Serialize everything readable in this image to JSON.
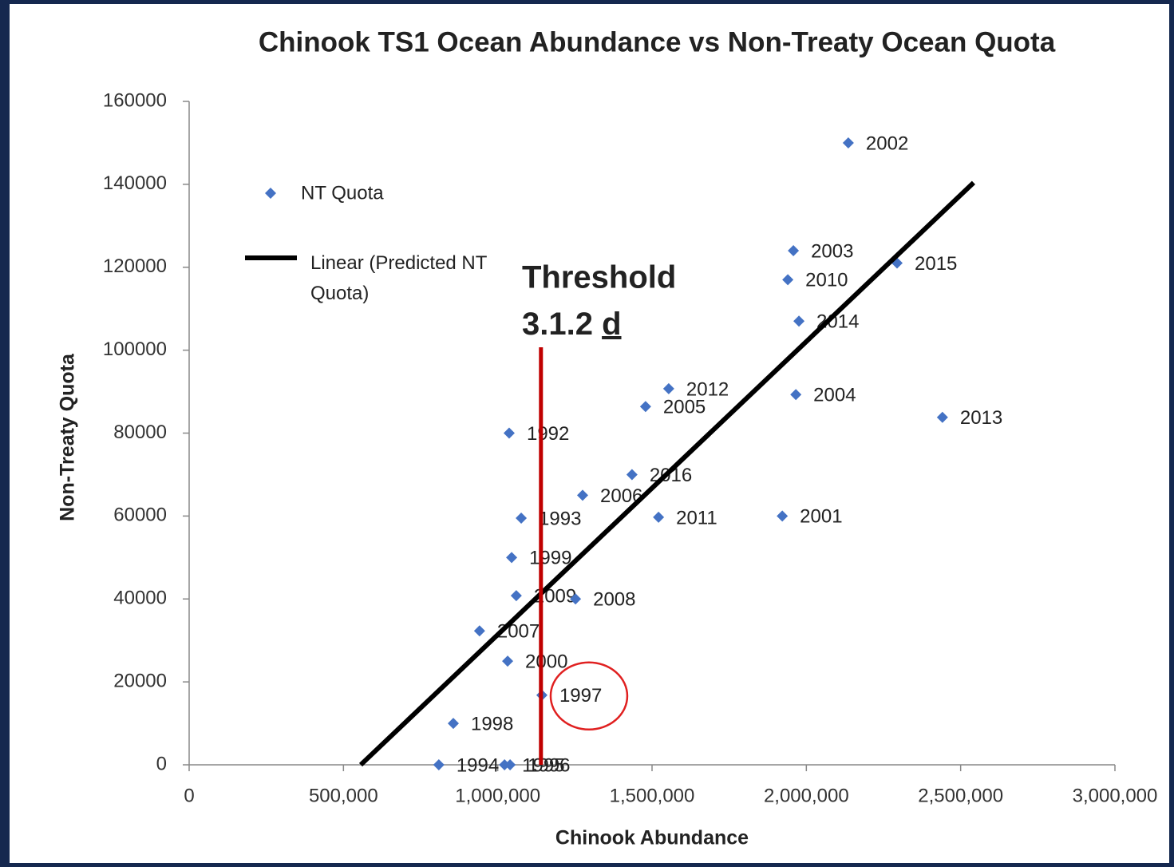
{
  "chart_data": {
    "type": "scatter",
    "title": "Chinook TS1 Ocean Abundance vs Non-Treaty Ocean Quota",
    "x_label": "Chinook Abundance",
    "y_label": "Non-Treaty  Quota",
    "xlim": [
      0,
      3000000
    ],
    "ylim": [
      0,
      160000
    ],
    "xticks": [
      0,
      {
        "value": 500000,
        "label": "500,000"
      },
      {
        "value": 1000000,
        "label": "1,000,000"
      },
      {
        "value": 1500000,
        "label": "1,500,000"
      },
      {
        "value": 2000000,
        "label": "2,000,000"
      },
      {
        "value": 2500000,
        "label": "2,500,000"
      },
      {
        "value": 3000000,
        "label": "3,000,000"
      }
    ],
    "yticks": [
      0,
      20000,
      40000,
      60000,
      80000,
      100000,
      120000,
      140000,
      160000
    ],
    "grid": false,
    "series": [
      {
        "name": "NT Quota",
        "color": "#4472c4",
        "labels": [
          "2002",
          "2003",
          "2015",
          "2010",
          "2014",
          "2012",
          "2005",
          "2004",
          "2013",
          "1992",
          "2016",
          "2006",
          "1993",
          "2011",
          "2001",
          "1999",
          "2009",
          "2008",
          "2007",
          "2000",
          "1997",
          "1998",
          "1994",
          "1995",
          "1996"
        ],
        "x": [
          2136000,
          1958000,
          2294000,
          1940000,
          1976000,
          1554000,
          1479000,
          1966000,
          2441000,
          1037000,
          1435000,
          1275000,
          1076000,
          1521000,
          1922000,
          1045000,
          1060000,
          1252000,
          941000,
          1032000,
          1143000,
          856000,
          809000,
          1022000,
          1040000
        ],
        "values": [
          150000,
          124000,
          121000,
          117000,
          107000,
          90700,
          86400,
          89300,
          83800,
          80000,
          70000,
          65000,
          59500,
          59700,
          60000,
          50000,
          40800,
          40000,
          32300,
          25000,
          16800,
          10000,
          0,
          0,
          0
        ]
      },
      {
        "name": "Linear (Predicted NT Quota)",
        "color": "#000000",
        "kind": "line",
        "x": [
          556000,
          2542000
        ],
        "values": [
          0,
          140400
        ]
      }
    ],
    "threshold": {
      "lines": [
        "Threshold",
        "3.1.2"
      ],
      "underlined": "d",
      "color": "#c00000",
      "x": 1140000,
      "y": [
        0,
        100700
      ]
    },
    "highlight": {
      "point": 20,
      "color": "#e02020"
    }
  }
}
